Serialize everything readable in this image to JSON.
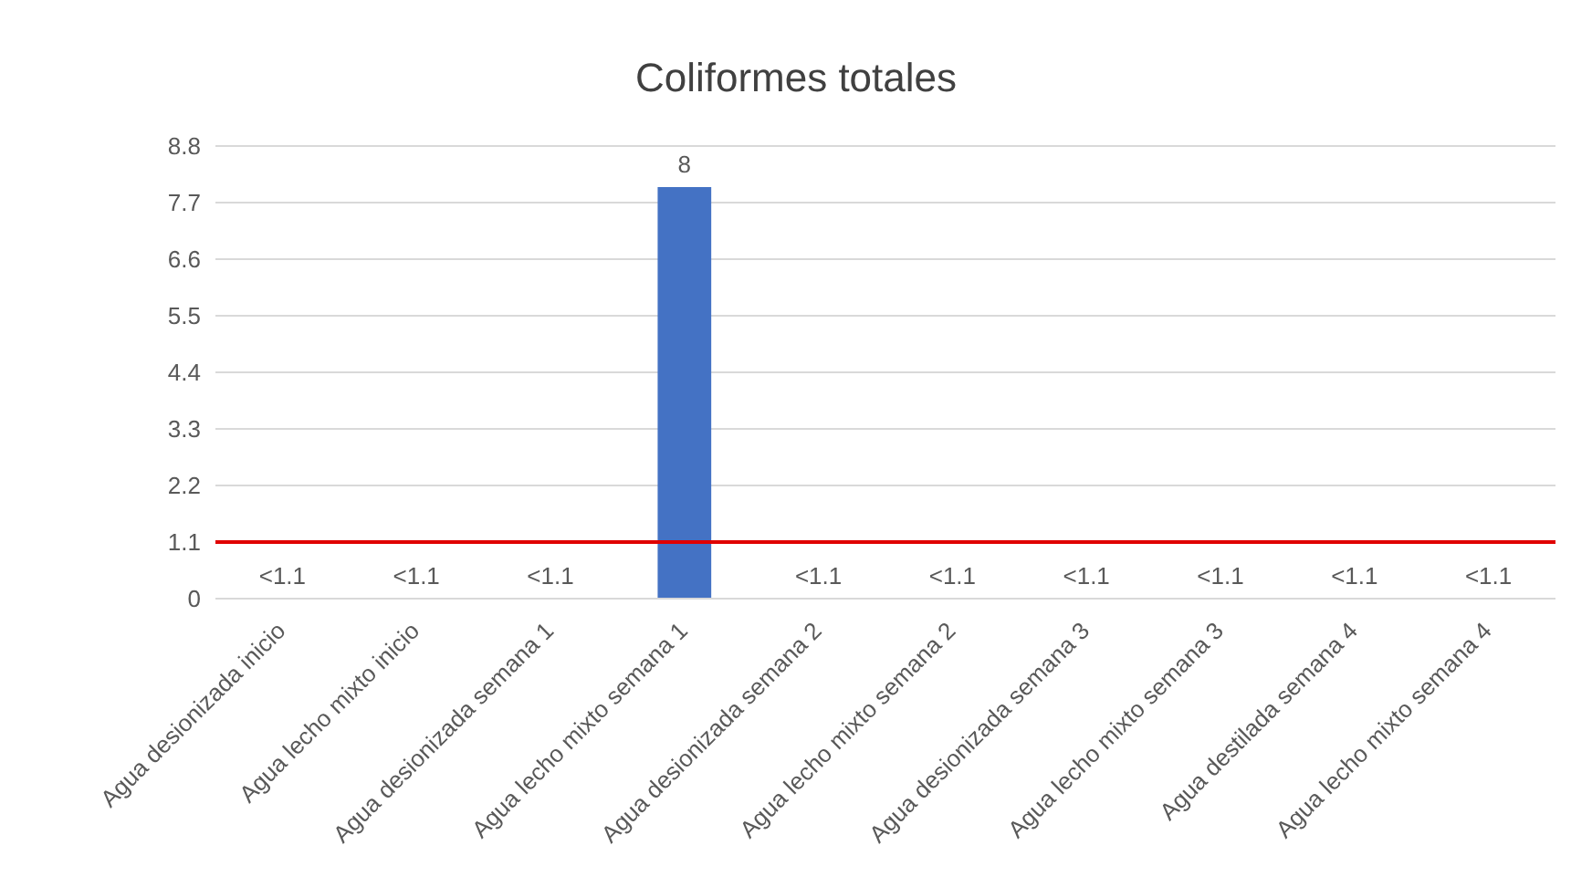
{
  "chart_data": {
    "type": "bar",
    "title": "Coliformes totales",
    "categories": [
      "Agua desionizada inicio",
      "Agua lecho mixto inicio",
      "Agua desionizada semana 1",
      "Agua lecho mixto semana 1",
      "Agua desionizada semana 2",
      "Agua lecho mixto semana 2",
      "Agua desionizada semana 3",
      "Agua lecho mixto semana 3",
      "Agua destilada semana 4",
      "Agua lecho mixto semana 4"
    ],
    "values": [
      null,
      null,
      null,
      8,
      null,
      null,
      null,
      null,
      null,
      null
    ],
    "value_labels": [
      "<1.1",
      "<1.1",
      "<1.1",
      "8",
      "<1.1",
      "<1.1",
      "<1.1",
      "<1.1",
      "<1.1",
      "<1.1"
    ],
    "color": "#4472c4",
    "ylim": [
      0,
      8.8
    ],
    "yticks": [
      0,
      1.1,
      2.2,
      3.3,
      4.4,
      5.5,
      6.6,
      7.7,
      8.8
    ],
    "grid": "y",
    "ref_lines": [
      {
        "axis": "y",
        "value": 1.1,
        "color": "#e00000"
      }
    ]
  }
}
